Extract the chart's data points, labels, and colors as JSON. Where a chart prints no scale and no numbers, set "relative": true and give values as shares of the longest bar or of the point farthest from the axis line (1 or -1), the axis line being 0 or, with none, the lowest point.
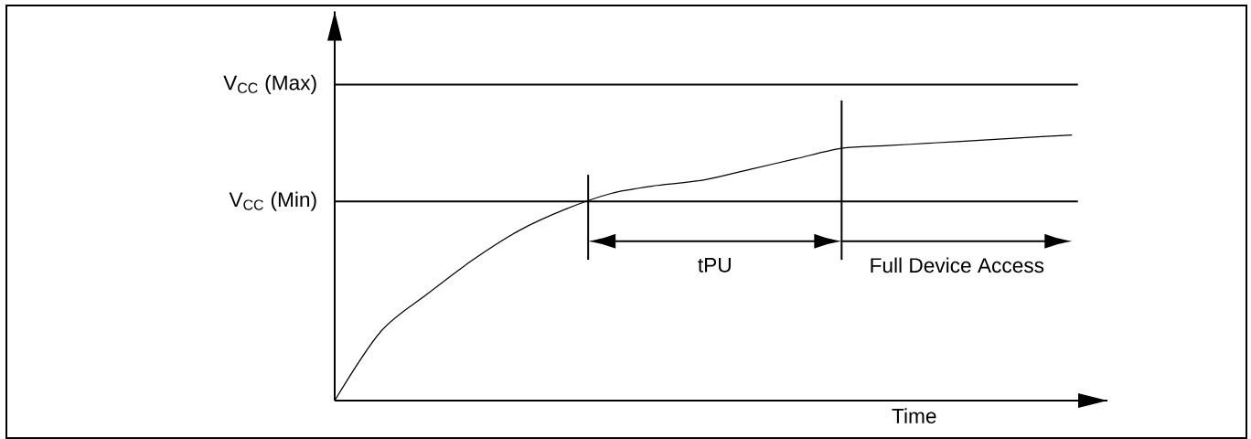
{
  "chart_data": {
    "type": "line",
    "relative": true,
    "xlabel": "Time",
    "categories": [
      null,
      null,
      null,
      null,
      null,
      null,
      null,
      null,
      null,
      null,
      null,
      null,
      null,
      null,
      null,
      null,
      null
    ],
    "series": [
      {
        "color": "#000000",
        "values": [
          0,
          0.26,
          0.4,
          0.53,
          0.64,
          0.72,
          0.78,
          0.81,
          0.83,
          0.87,
          0.91,
          0.95,
          0.96,
          0.97,
          0.98,
          0.99,
          1.0
        ]
      }
    ],
    "ref_lines": [
      {
        "axis": "y",
        "value": 1.19,
        "label": "V$_{CC}$ (Max)"
      },
      {
        "axis": "y",
        "value": 0.75,
        "label": "V$_{CC}$ (Min)"
      }
    ],
    "annotations": [
      "tPU",
      "Full Device Access"
    ],
    "marker": "none",
    "line_style": "solid"
  }
}
